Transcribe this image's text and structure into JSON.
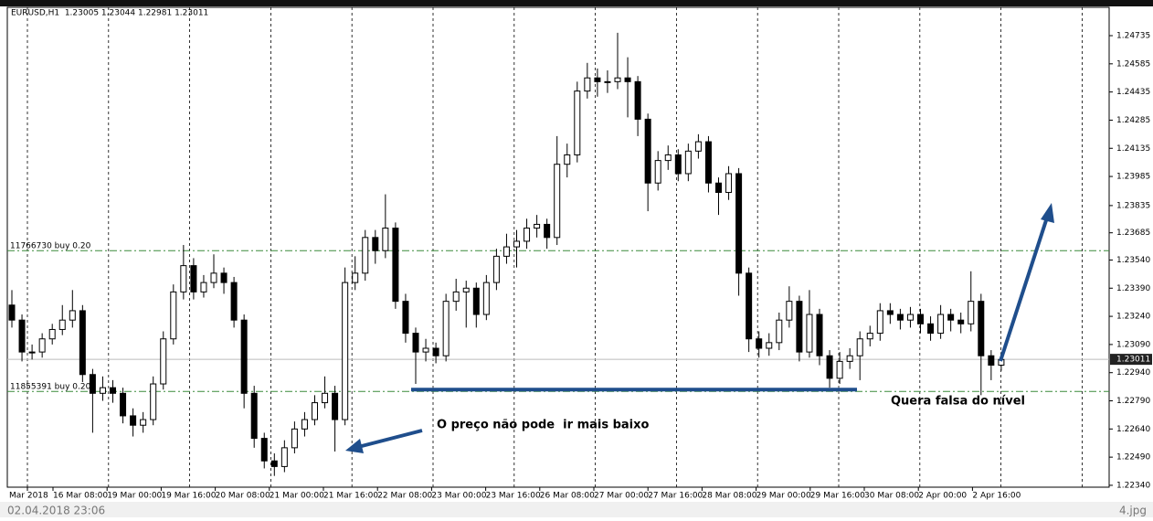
{
  "chart_data": {
    "type": "candlestick",
    "title": "EURUSD,H1  1.23005 1.23044 1.22981 1.23011",
    "ylim": [
      1.2233,
      1.24886
    ],
    "yticks": [
      {
        "value": 1.2234,
        "label": "1.22340"
      },
      {
        "value": 1.2249,
        "label": "1.22490"
      },
      {
        "value": 1.2264,
        "label": "1.22640"
      },
      {
        "value": 1.2279,
        "label": "1.22790"
      },
      {
        "value": 1.2294,
        "label": "1.22940"
      },
      {
        "value": 1.2309,
        "label": "1.23090"
      },
      {
        "value": 1.2324,
        "label": "1.23240"
      },
      {
        "value": 1.2339,
        "label": "1.23390"
      },
      {
        "value": 1.2354,
        "label": "1.23540"
      },
      1.23685,
      {
        "value": 1.2383,
        "label": "1.23835"
      },
      1.23985,
      1.24135,
      1.24285,
      1.24435,
      1.24585,
      1.24735
    ],
    "x_labels": [
      "Mar 2018",
      "16 Mar 08:00",
      "19 Mar 00:00",
      "19 Mar 16:00",
      "20 Mar 08:00",
      "21 Mar 00:00",
      "21 Mar 16:00",
      "22 Mar 08:00",
      "23 Mar 00:00",
      "23 Mar 16:00",
      "26 Mar 08:00",
      "27 Mar 00:00",
      "27 Mar 16:00",
      "28 Mar 08:00",
      "29 Mar 00:00",
      "29 Mar 16:00",
      "30 Mar 08:00",
      "2 Apr 00:00",
      "2 Apr 16:00"
    ],
    "last_price": 1.23011,
    "levels": [
      {
        "value": 1.2359,
        "label": "11766730 buy 0.20"
      },
      {
        "value": 1.2284,
        "label": "11855391 buy 0.20"
      }
    ],
    "support": 1.2285,
    "annotations": [
      "O preço não pode  ir mais baixo",
      "Quera falsa do nível"
    ],
    "footer": {
      "left": "02.04.2018 23:06",
      "right": "4.jpg"
    },
    "ohlc": [
      [
        1.233,
        1.2338,
        1.2318,
        1.2322
      ],
      [
        1.2322,
        1.2325,
        1.23,
        1.2305
      ],
      [
        1.2305,
        1.2309,
        1.2301,
        1.2305
      ],
      [
        1.2305,
        1.2315,
        1.2302,
        1.2312
      ],
      [
        1.2312,
        1.232,
        1.2309,
        1.2317
      ],
      [
        1.2317,
        1.233,
        1.2314,
        1.2322
      ],
      [
        1.2322,
        1.2338,
        1.2318,
        1.2327
      ],
      [
        1.2327,
        1.233,
        1.2289,
        1.2293
      ],
      [
        1.2293,
        1.2296,
        1.2262,
        1.2283
      ],
      [
        1.2283,
        1.2292,
        1.2279,
        1.2286
      ],
      [
        1.2286,
        1.229,
        1.2278,
        1.2283
      ],
      [
        1.2283,
        1.2286,
        1.2267,
        1.2271
      ],
      [
        1.2271,
        1.2275,
        1.226,
        1.2266
      ],
      [
        1.2266,
        1.2273,
        1.2262,
        1.2269
      ],
      [
        1.2269,
        1.2292,
        1.2266,
        1.2288
      ],
      [
        1.2288,
        1.2316,
        1.2285,
        1.2312
      ],
      [
        1.2312,
        1.2341,
        1.2309,
        1.2337
      ],
      [
        1.2337,
        1.2362,
        1.2333,
        1.2351
      ],
      [
        1.2351,
        1.2355,
        1.2333,
        1.2337
      ],
      [
        1.2337,
        1.2346,
        1.2334,
        1.2342
      ],
      [
        1.2342,
        1.2357,
        1.2339,
        1.2347
      ],
      [
        1.2347,
        1.235,
        1.2336,
        1.2342
      ],
      [
        1.2342,
        1.2345,
        1.2318,
        1.2322
      ],
      [
        1.2322,
        1.2325,
        1.2275,
        1.2283
      ],
      [
        1.2283,
        1.2287,
        1.2254,
        1.2259
      ],
      [
        1.2259,
        1.2262,
        1.2243,
        1.2247
      ],
      [
        1.2247,
        1.2251,
        1.2239,
        1.2244
      ],
      [
        1.2244,
        1.2258,
        1.2241,
        1.2254
      ],
      [
        1.2254,
        1.2268,
        1.2251,
        1.2264
      ],
      [
        1.2264,
        1.2273,
        1.226,
        1.2269
      ],
      [
        1.2269,
        1.2282,
        1.2266,
        1.2278
      ],
      [
        1.2278,
        1.2292,
        1.2275,
        1.2283
      ],
      [
        1.2283,
        1.2287,
        1.2252,
        1.2269
      ],
      [
        1.2269,
        1.235,
        1.2266,
        1.2342
      ],
      [
        1.2342,
        1.2356,
        1.2338,
        1.2347
      ],
      [
        1.2347,
        1.237,
        1.2343,
        1.2366
      ],
      [
        1.2366,
        1.237,
        1.2352,
        1.2359
      ],
      [
        1.2359,
        1.2389,
        1.2355,
        1.2371
      ],
      [
        1.2371,
        1.2374,
        1.2328,
        1.2332
      ],
      [
        1.2332,
        1.2336,
        1.231,
        1.2315
      ],
      [
        1.2315,
        1.2318,
        1.2288,
        1.2305
      ],
      [
        1.2305,
        1.2312,
        1.23,
        1.2307
      ],
      [
        1.2307,
        1.231,
        1.2299,
        1.2303
      ],
      [
        1.2303,
        1.2336,
        1.23,
        1.2332
      ],
      [
        1.2332,
        1.2344,
        1.2327,
        1.2337
      ],
      [
        1.2337,
        1.2343,
        1.2318,
        1.2339
      ],
      [
        1.2339,
        1.2342,
        1.2318,
        1.2325
      ],
      [
        1.2325,
        1.2346,
        1.2322,
        1.2342
      ],
      [
        1.2342,
        1.236,
        1.2338,
        1.2356
      ],
      [
        1.2356,
        1.2368,
        1.2352,
        1.2361
      ],
      [
        1.2361,
        1.237,
        1.235,
        1.2364
      ],
      [
        1.2364,
        1.2376,
        1.236,
        1.2371
      ],
      [
        1.2371,
        1.2378,
        1.2366,
        1.2373
      ],
      [
        1.2373,
        1.2376,
        1.236,
        1.2366
      ],
      [
        1.2366,
        1.242,
        1.2362,
        1.2405
      ],
      [
        1.2405,
        1.2416,
        1.2398,
        1.241
      ],
      [
        1.241,
        1.2449,
        1.2406,
        1.2444
      ],
      [
        1.2444,
        1.2459,
        1.244,
        1.2451
      ],
      [
        1.2451,
        1.2456,
        1.2441,
        1.2449
      ],
      [
        1.2449,
        1.2455,
        1.2443,
        1.2449
      ],
      [
        1.2449,
        1.2475,
        1.2445,
        1.2451
      ],
      [
        1.2451,
        1.2462,
        1.243,
        1.2449
      ],
      [
        1.2449,
        1.2452,
        1.242,
        1.2429
      ],
      [
        1.2429,
        1.2432,
        1.238,
        1.2395
      ],
      [
        1.2395,
        1.2412,
        1.2391,
        1.2407
      ],
      [
        1.2407,
        1.2415,
        1.2402,
        1.241
      ],
      [
        1.241,
        1.2413,
        1.2396,
        1.24
      ],
      [
        1.24,
        1.2416,
        1.2396,
        1.2412
      ],
      [
        1.2412,
        1.2421,
        1.2408,
        1.2417
      ],
      [
        1.2417,
        1.242,
        1.239,
        1.2395
      ],
      [
        1.2395,
        1.2398,
        1.2378,
        1.239
      ],
      [
        1.239,
        1.2404,
        1.2386,
        1.24
      ],
      [
        1.24,
        1.2403,
        1.2335,
        1.2347
      ],
      [
        1.2347,
        1.235,
        1.2305,
        1.2312
      ],
      [
        1.2312,
        1.2316,
        1.2302,
        1.2307
      ],
      [
        1.2307,
        1.2315,
        1.2303,
        1.231
      ],
      [
        1.231,
        1.2326,
        1.2306,
        1.2322
      ],
      [
        1.2322,
        1.234,
        1.2318,
        1.2332
      ],
      [
        1.2332,
        1.2335,
        1.23,
        1.2305
      ],
      [
        1.2305,
        1.2338,
        1.2302,
        1.2325
      ],
      [
        1.2325,
        1.2328,
        1.2298,
        1.2303
      ],
      [
        1.2303,
        1.2306,
        1.2286,
        1.2291
      ],
      [
        1.2291,
        1.2305,
        1.2288,
        1.23
      ],
      [
        1.23,
        1.2307,
        1.2296,
        1.2303
      ],
      [
        1.2303,
        1.2316,
        1.229,
        1.2312
      ],
      [
        1.2312,
        1.2319,
        1.2308,
        1.2315
      ],
      [
        1.2315,
        1.2331,
        1.2311,
        1.2327
      ],
      [
        1.2327,
        1.2331,
        1.232,
        1.2325
      ],
      [
        1.2325,
        1.2328,
        1.2317,
        1.2322
      ],
      [
        1.2322,
        1.2329,
        1.2318,
        1.2325
      ],
      [
        1.2325,
        1.2328,
        1.2315,
        1.232
      ],
      [
        1.232,
        1.2324,
        1.2311,
        1.2315
      ],
      [
        1.2315,
        1.233,
        1.2312,
        1.2325
      ],
      [
        1.2325,
        1.2328,
        1.2316,
        1.2322
      ],
      [
        1.2322,
        1.2326,
        1.2315,
        1.232
      ],
      [
        1.232,
        1.2348,
        1.2316,
        1.2332
      ],
      [
        1.2332,
        1.2336,
        1.2282,
        1.2303
      ],
      [
        1.2303,
        1.2306,
        1.229,
        1.2298
      ],
      [
        1.2298,
        1.2305,
        1.2295,
        1.2301
      ]
    ]
  }
}
